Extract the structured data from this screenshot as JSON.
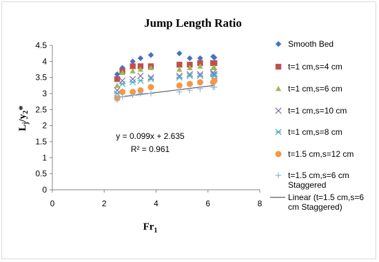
{
  "chart_data": {
    "type": "scatter",
    "title": "Jump Length Ratio",
    "xlabel": "Fr1",
    "ylabel": "Lj/y2*",
    "xlim": [
      0,
      8
    ],
    "ylim": [
      0,
      4.5
    ],
    "xticks": [
      "0",
      "2",
      "4",
      "6",
      "8"
    ],
    "yticks": [
      "0",
      "0.5",
      "1",
      "1.5",
      "2",
      "2.5",
      "3",
      "3.5",
      "4",
      "4.5"
    ],
    "grid": false,
    "legend_position": "right",
    "series": [
      {
        "name": "Smooth Bed",
        "marker": "diamond",
        "color": "#4472c4",
        "x": [
          2.5,
          2.7,
          3.1,
          3.4,
          3.8,
          4.9,
          5.3,
          5.7,
          6.2,
          6.25
        ],
        "y": [
          3.6,
          3.8,
          4.0,
          4.1,
          4.2,
          4.25,
          4.1,
          4.1,
          4.15,
          4.12
        ]
      },
      {
        "name": "t=1 cm,s=4 cm",
        "marker": "square",
        "color": "#c0504d",
        "x": [
          2.5,
          2.7,
          3.1,
          3.4,
          3.8,
          4.9,
          5.3,
          5.7,
          6.2,
          6.25
        ],
        "y": [
          3.45,
          3.7,
          3.85,
          3.85,
          3.85,
          3.9,
          3.9,
          3.95,
          3.95,
          3.95
        ]
      },
      {
        "name": "t=1 cm,s=6 cm",
        "marker": "triangle",
        "color": "#9bbb59",
        "x": [
          2.5,
          2.7,
          3.1,
          3.4,
          3.8,
          4.9,
          5.3,
          5.7,
          6.2,
          6.25
        ],
        "y": [
          3.25,
          3.65,
          3.7,
          3.75,
          3.8,
          3.75,
          3.8,
          3.85,
          3.8,
          3.8
        ]
      },
      {
        "name": "t=1 cm,s=10 cm",
        "marker": "x",
        "color": "#8064a2",
        "x": [
          2.5,
          2.7,
          3.1,
          3.4,
          3.8,
          4.9,
          5.3,
          5.7,
          6.2,
          6.25
        ],
        "y": [
          3.1,
          3.4,
          3.45,
          3.55,
          3.5,
          3.55,
          3.6,
          3.6,
          3.65,
          3.6
        ]
      },
      {
        "name": "t=1 cm,s=8 cm",
        "marker": "star",
        "color": "#4bacc6",
        "x": [
          2.5,
          2.7,
          3.1,
          3.4,
          3.8,
          4.9,
          5.3,
          5.7,
          6.2,
          6.25
        ],
        "y": [
          3.0,
          3.3,
          3.35,
          3.4,
          3.45,
          3.5,
          3.55,
          3.55,
          3.6,
          3.55
        ]
      },
      {
        "name": "t=1.5 cm,s=12 cm",
        "marker": "circle",
        "color": "#f79646",
        "x": [
          2.5,
          2.7,
          3.1,
          3.4,
          3.8,
          4.9,
          5.3,
          5.7,
          6.2,
          6.25
        ],
        "y": [
          2.85,
          3.05,
          3.05,
          3.1,
          3.2,
          3.25,
          3.3,
          3.35,
          3.35,
          3.4
        ]
      },
      {
        "name": "t=1.5 cm,s=6 cm Staggered",
        "marker": "plus",
        "color": "#8eb4e3",
        "x": [
          2.5,
          2.7,
          3.1,
          3.4,
          3.8,
          4.9,
          5.3,
          5.7,
          6.2,
          6.25
        ],
        "y": [
          2.8,
          2.9,
          2.95,
          3.0,
          3.0,
          3.05,
          3.1,
          3.15,
          3.2,
          3.2
        ]
      }
    ],
    "trendline": {
      "name": "Linear (t=1.5 cm,s=6 cm Staggered)",
      "slope": 0.099,
      "intercept": 2.635,
      "x_range": [
        2.5,
        6.25
      ],
      "color": "#595959",
      "equation": "y = 0.099x + 2.635",
      "r2": "R² = 0.961"
    }
  }
}
